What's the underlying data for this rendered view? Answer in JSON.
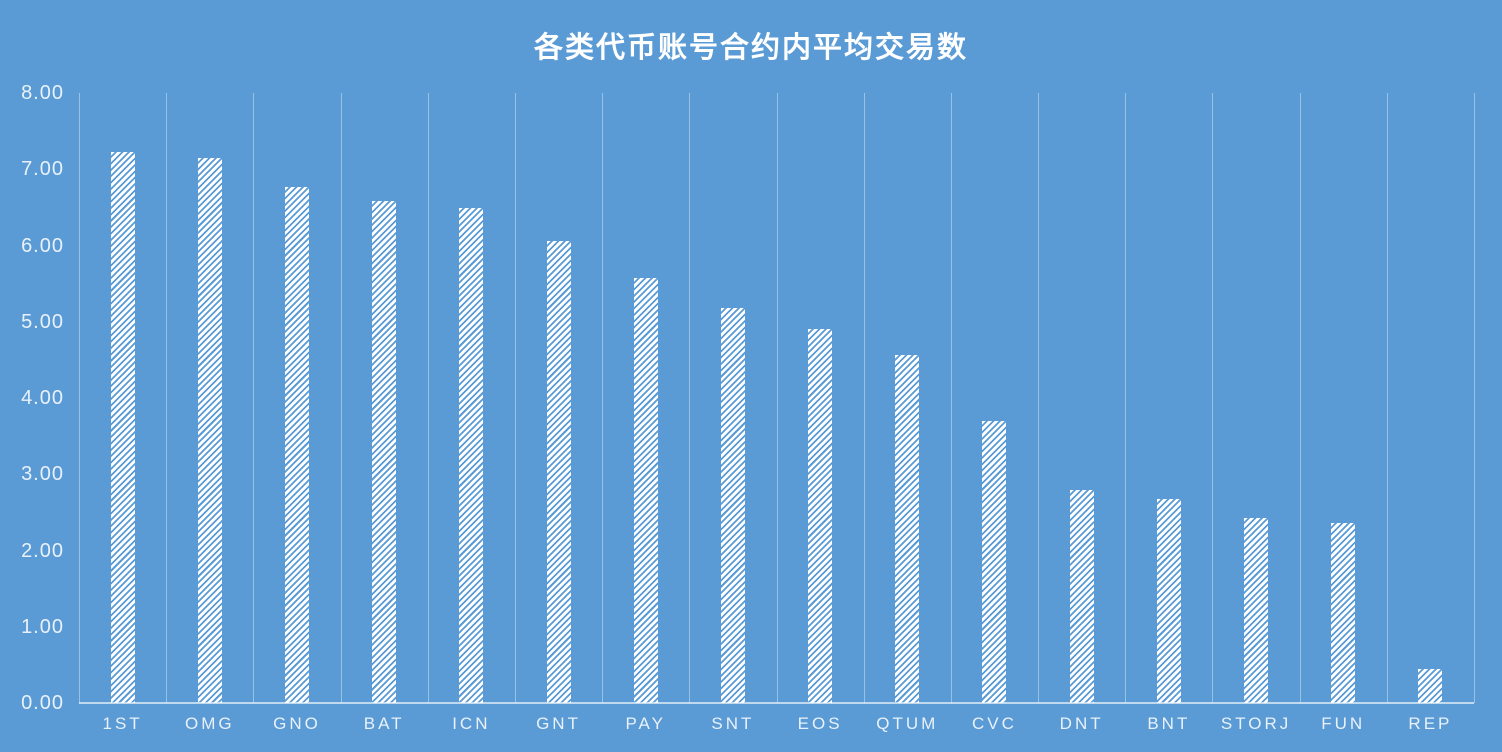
{
  "chart_data": {
    "type": "bar",
    "title": "各类代币账号合约内平均交易数",
    "categories": [
      "1ST",
      "OMG",
      "GNO",
      "BAT",
      "ICN",
      "GNT",
      "PAY",
      "SNT",
      "EOS",
      "QTUM",
      "CVC",
      "DNT",
      "BNT",
      "STORJ",
      "FUN",
      "REP"
    ],
    "values": [
      7.23,
      7.15,
      6.77,
      6.58,
      6.49,
      6.06,
      5.58,
      5.18,
      4.91,
      4.57,
      3.7,
      2.79,
      2.68,
      2.42,
      2.36,
      0.45
    ],
    "xlabel": "",
    "ylabel": "",
    "ylim": [
      0,
      8
    ],
    "y_tick_step": 1.0,
    "y_ticks": [
      "8.00",
      "7.00",
      "6.00",
      "5.00",
      "4.00",
      "3.00",
      "2.00",
      "1.00",
      "0.00"
    ],
    "grid": "vertical-category-boundaries-only",
    "legend": "none",
    "bar_fill_pattern": "white-diagonal-hatch-ascending",
    "colors": {
      "background": "#5B9BD5",
      "bar_stripe": "#FFFFFF",
      "gridline": "rgba(255,255,255,0.38)",
      "axis_line": "rgba(255,255,255,0.62)",
      "title_text": "#FFFFFF",
      "tick_text": "#E9F1FA"
    }
  }
}
